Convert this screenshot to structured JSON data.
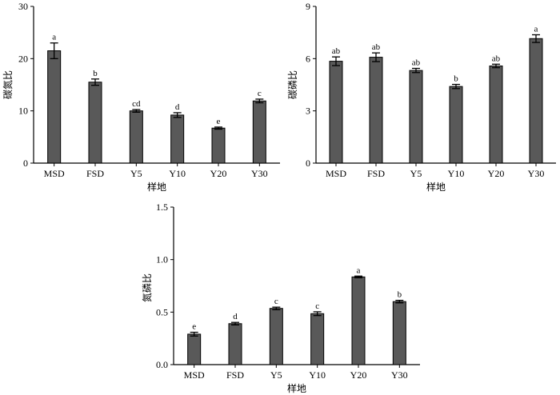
{
  "chart_data": [
    {
      "type": "bar",
      "categories": [
        "MSD",
        "FSD",
        "Y5",
        "Y10",
        "Y20",
        "Y30"
      ],
      "values": [
        21.5,
        15.5,
        10.0,
        9.2,
        6.7,
        11.9
      ],
      "errors": [
        1.5,
        0.6,
        0.25,
        0.45,
        0.2,
        0.35
      ],
      "significance": [
        "a",
        "b",
        "cd",
        "d",
        "e",
        "c"
      ],
      "xlabel": "样地",
      "ylabel": "碳氮比",
      "ylim": [
        0,
        30
      ],
      "yticks": [
        0,
        10,
        20,
        30
      ],
      "color": "#595959"
    },
    {
      "type": "bar",
      "categories": [
        "MSD",
        "FSD",
        "Y5",
        "Y10",
        "Y20",
        "Y30"
      ],
      "values": [
        5.85,
        6.08,
        5.32,
        4.4,
        5.58,
        7.15
      ],
      "errors": [
        0.25,
        0.25,
        0.12,
        0.12,
        0.1,
        0.22
      ],
      "significance": [
        "ab",
        "ab",
        "ab",
        "b",
        "ab",
        "a"
      ],
      "xlabel": "样地",
      "ylabel": "碳磷比",
      "ylim": [
        0,
        9
      ],
      "yticks": [
        0,
        3,
        6,
        9
      ],
      "color": "#595959"
    },
    {
      "type": "bar",
      "categories": [
        "MSD",
        "FSD",
        "Y5",
        "Y10",
        "Y20",
        "Y30"
      ],
      "values": [
        0.29,
        0.39,
        0.535,
        0.485,
        0.835,
        0.6
      ],
      "errors": [
        0.018,
        0.012,
        0.012,
        0.018,
        0.008,
        0.012
      ],
      "significance": [
        "e",
        "d",
        "c",
        "c",
        "a",
        "b"
      ],
      "xlabel": "样地",
      "ylabel": "氮磷比",
      "ylim": [
        0,
        1.5
      ],
      "yticks": [
        "0.0",
        "0.5",
        "1.0",
        "1.5"
      ],
      "color": "#595959"
    }
  ]
}
